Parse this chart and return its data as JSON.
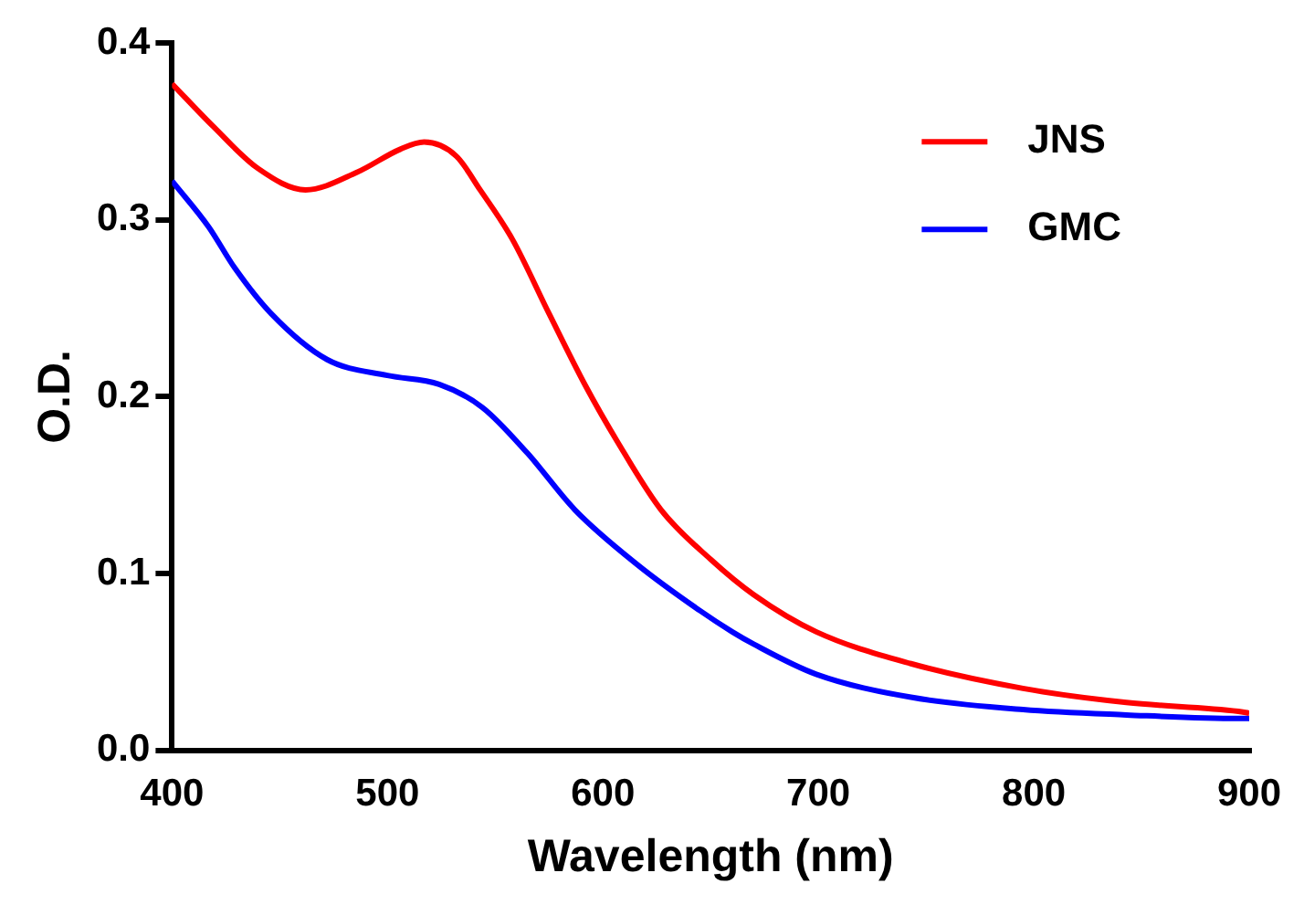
{
  "chart_data": {
    "type": "line",
    "xlabel": "Wavelength (nm)",
    "ylabel": "O.D.",
    "xlim": [
      400,
      900
    ],
    "xticks": [
      400,
      500,
      600,
      700,
      800,
      900
    ],
    "ylim": [
      0,
      0.4
    ],
    "yticks": [
      {
        "value": 0,
        "label": "0.0"
      },
      0.1,
      0.2,
      0.3,
      0.4
    ],
    "grid": false,
    "legend": "top right",
    "marker": "none",
    "line_style": "solid",
    "series": [
      {
        "name": "JNS",
        "color": "#ff0000",
        "x": [
          400,
          419,
          440,
          462,
          486,
          506,
          517,
          532,
          543,
          558,
          575,
          592,
          607,
          627,
          650,
          670,
          699,
          743,
          795,
          843,
          895,
          900
        ],
        "values": [
          0.377,
          0.353,
          0.329,
          0.317,
          0.327,
          0.34,
          0.344,
          0.336,
          0.317,
          0.289,
          0.247,
          0.206,
          0.174,
          0.136,
          0.108,
          0.088,
          0.067,
          0.049,
          0.035,
          0.027,
          0.022,
          0.021
        ]
      },
      {
        "name": "GMC",
        "color": "#0000ff",
        "x": [
          400,
          417,
          429,
          446,
          472,
          500,
          524,
          544,
          565,
          587,
          616,
          645,
          660,
          670,
          699,
          743,
          795,
          843,
          895,
          900
        ],
        "values": [
          0.322,
          0.296,
          0.273,
          0.247,
          0.221,
          0.212,
          0.207,
          0.194,
          0.168,
          0.136,
          0.105,
          0.079,
          0.067,
          0.06,
          0.043,
          0.03,
          0.023,
          0.02,
          0.018,
          0.018
        ]
      }
    ]
  }
}
